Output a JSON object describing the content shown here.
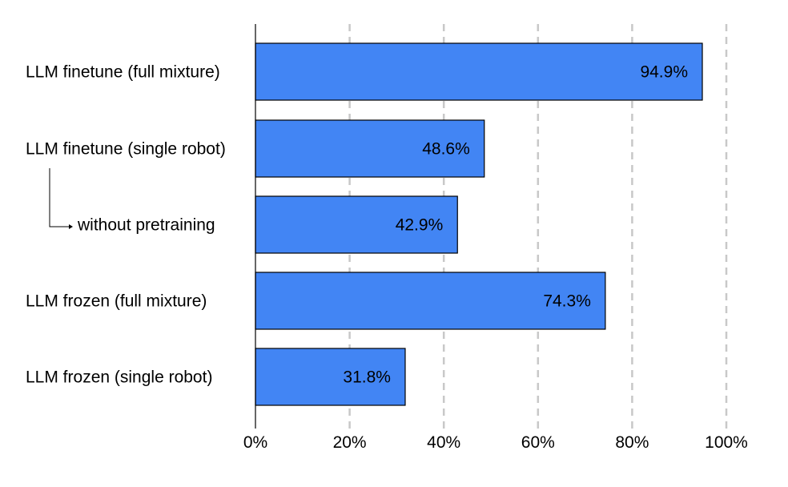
{
  "chart_data": {
    "type": "bar",
    "orientation": "horizontal",
    "title": "",
    "xlabel": "",
    "ylabel": "",
    "categories": [
      "LLM finetune (full mixture)",
      "LLM finetune (single robot)",
      "without pretraining",
      "LLM frozen (full mixture)",
      "LLM frozen (single robot)"
    ],
    "values": [
      94.9,
      48.6,
      42.9,
      74.3,
      31.8
    ],
    "value_labels": [
      "94.9%",
      "48.6%",
      "42.9%",
      "74.3%",
      "31.8%"
    ],
    "xlim": [
      0,
      100
    ],
    "ticks": [
      0,
      20,
      40,
      60,
      80,
      100
    ],
    "tick_labels": [
      "0%",
      "20%",
      "40%",
      "60%",
      "80%",
      "100%"
    ],
    "grid": "vertical dashed",
    "legend": "none",
    "bar_color": "#4285f4",
    "grid_color": "#c8c8c8",
    "annotation": "without pretraining is a sub-variant of LLM finetune (single robot)"
  }
}
